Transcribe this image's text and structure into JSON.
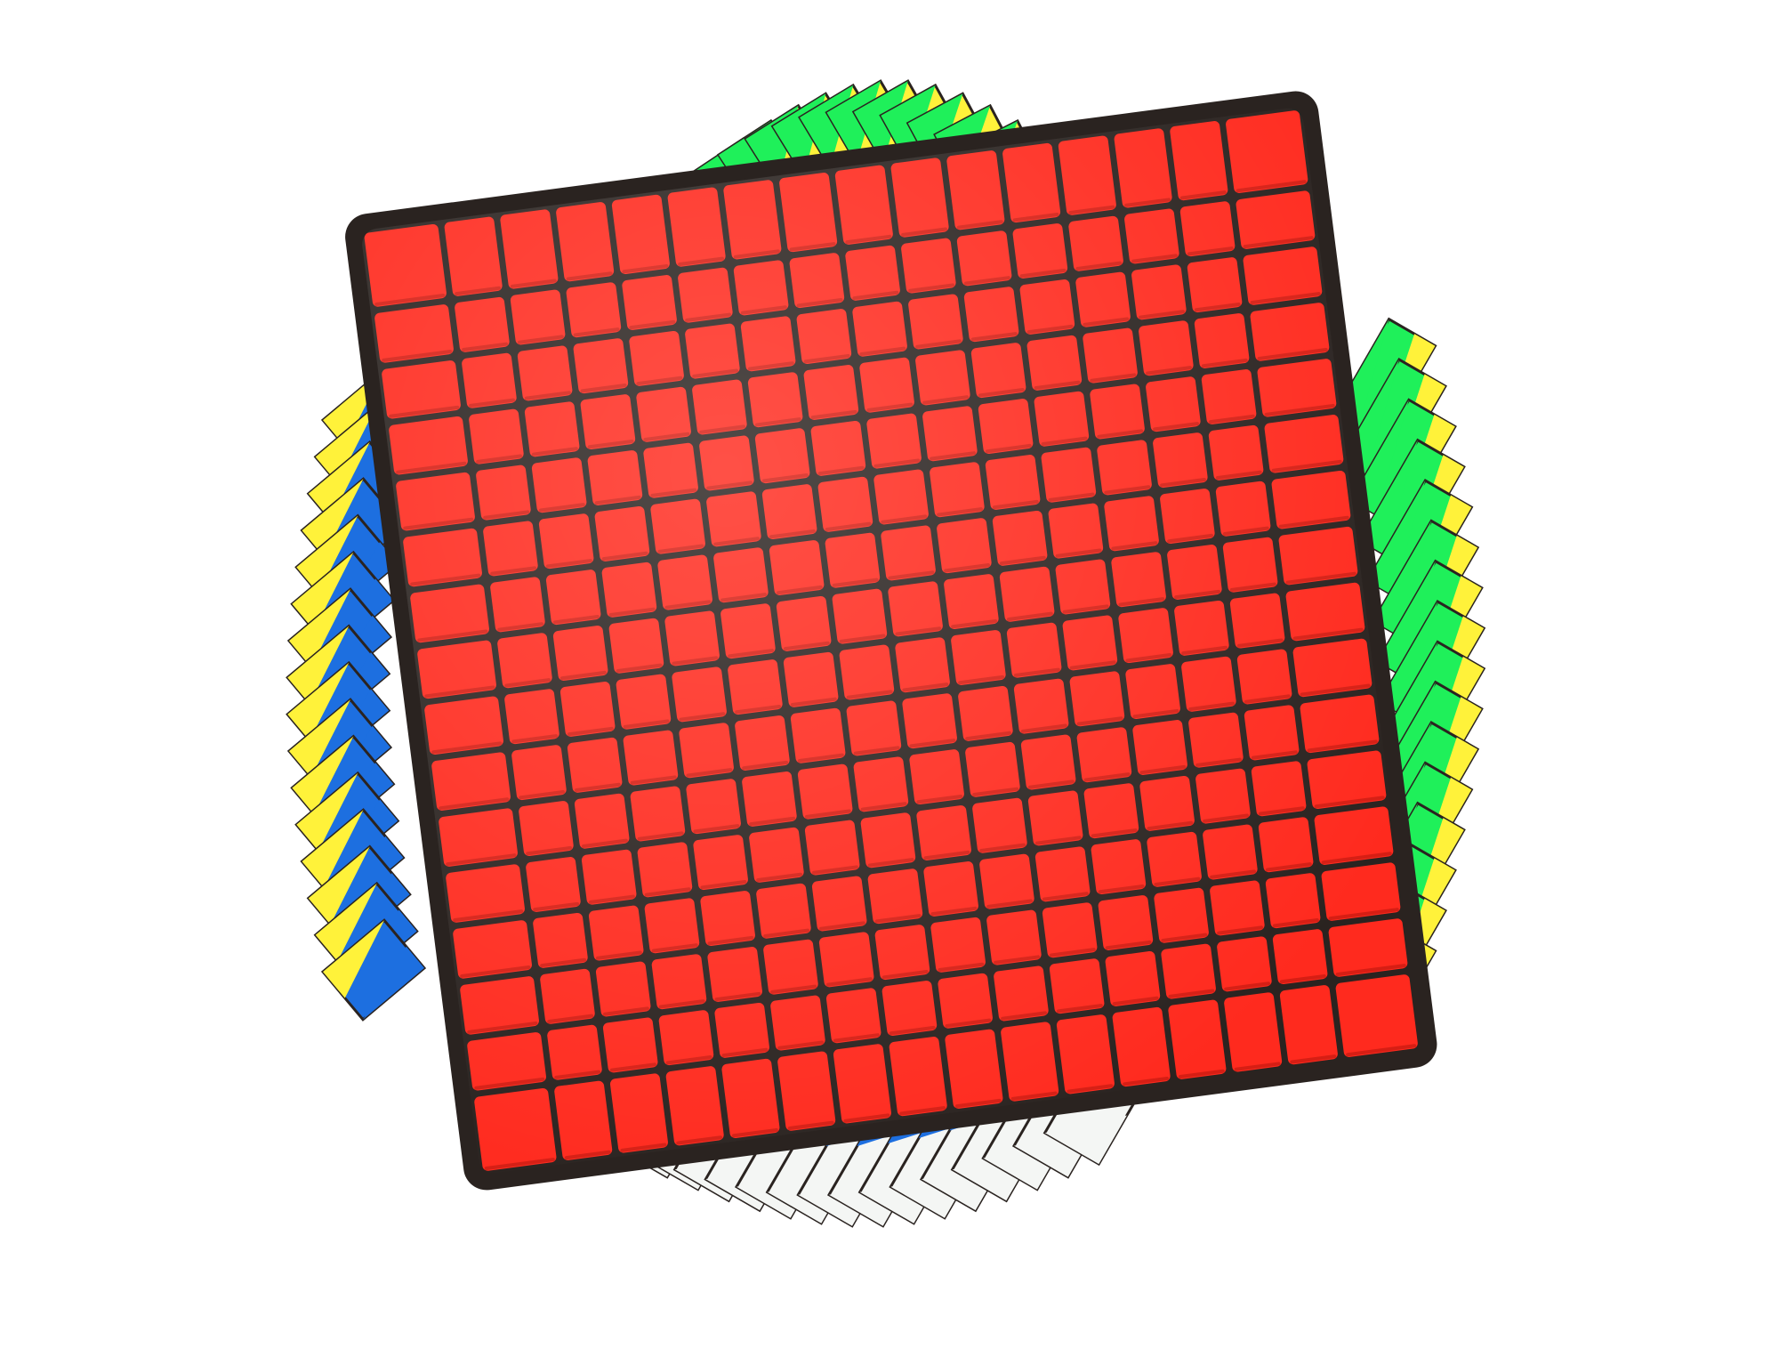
{
  "image": {
    "subject": "Puzzle cube",
    "colors": {
      "face": "#ff2a1e",
      "face_shadow": "#c41a10",
      "yellow": "#fff23a",
      "green": "#1ff05a",
      "blue": "#1d6fe0",
      "white": "#f4f6f4",
      "gap": "#2a2320",
      "background": "#ffffff"
    },
    "grid_size": 16,
    "watermark_text": ""
  }
}
